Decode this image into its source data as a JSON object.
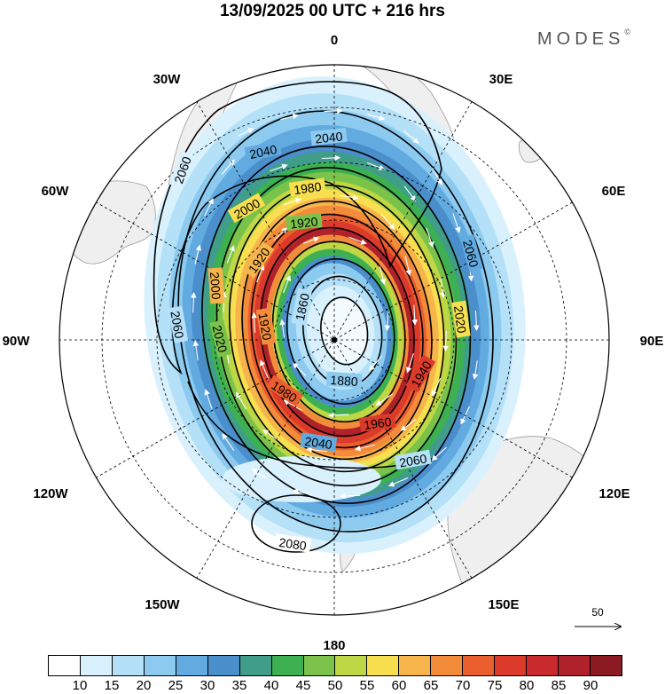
{
  "title": "13/09/2025  00 UTC  + 216 hrs",
  "brand": {
    "name": "MODES",
    "mark": "©"
  },
  "map": {
    "projection": "south polar stereographic",
    "longitude_labels": {
      "top": "0",
      "top_right": "30E",
      "right_upper": "60E",
      "right": "90E",
      "right_lower": "120E",
      "bottom_right": "150E",
      "bottom": "180",
      "bottom_left": "150W",
      "left_lower": "120W",
      "left": "90W",
      "left_upper": "60W",
      "top_left": "30W"
    },
    "contour_labels": [
      "2040",
      "2040",
      "2060",
      "2060",
      "2060",
      "1980",
      "2000",
      "1920",
      "1920",
      "1860",
      "1920",
      "2020",
      "1940",
      "2000",
      "1880",
      "1960",
      "1980",
      "2020",
      "2040",
      "2060",
      "2080"
    ],
    "reference_vector": "50"
  },
  "colorbar": {
    "colors": [
      "#ffffff",
      "#d9f1fd",
      "#b5e1f8",
      "#8dcaf0",
      "#62abe0",
      "#4a8ecb",
      "#3f9d8a",
      "#3db151",
      "#7bc24b",
      "#bed745",
      "#f7df4f",
      "#f7b44a",
      "#f38c3a",
      "#eb5e2e",
      "#dc3a2b",
      "#c92a2e",
      "#b0222b",
      "#8c1a22"
    ],
    "ticks": [
      "10",
      "15",
      "20",
      "25",
      "30",
      "35",
      "40",
      "45",
      "50",
      "55",
      "60",
      "65",
      "70",
      "75",
      "80",
      "85",
      "90"
    ]
  }
}
